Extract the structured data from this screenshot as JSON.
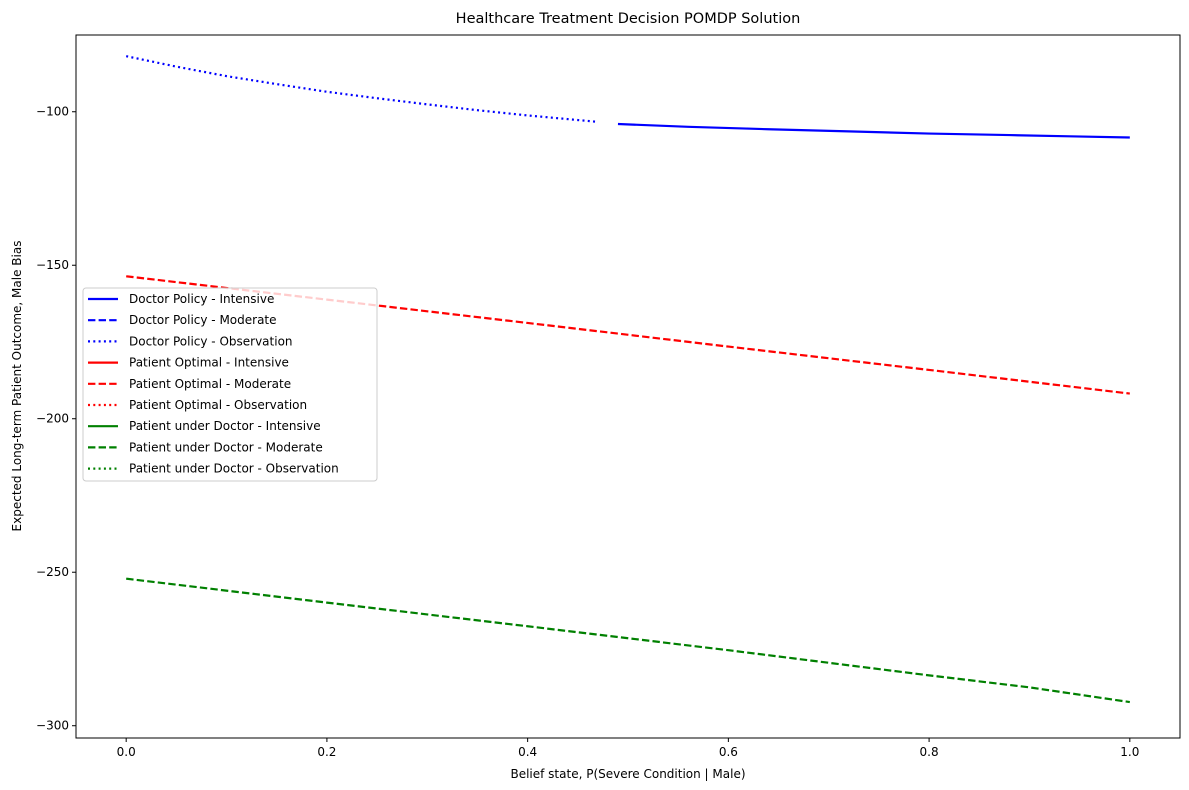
{
  "chart_data": {
    "type": "line",
    "title": "Healthcare Treatment Decision POMDP Solution",
    "xlabel": "Belief state, P(Severe Condition | Male)",
    "ylabel": "Expected Long-term Patient Outcome, Male Bias",
    "xlim": [
      -0.05,
      1.05
    ],
    "ylim": [
      -304,
      -75
    ],
    "xticks": [
      0.0,
      0.2,
      0.4,
      0.6,
      0.8,
      1.0
    ],
    "xtick_labels": [
      "0.0",
      "0.2",
      "0.4",
      "0.6",
      "0.8",
      "1.0"
    ],
    "yticks": [
      -300,
      -250,
      -200,
      -150,
      -100
    ],
    "ytick_labels": [
      "−300",
      "−250",
      "−200",
      "−150",
      "−100"
    ],
    "grid": false,
    "legend_position": "center-left",
    "series": [
      {
        "name": "Doctor Policy - Intensive",
        "color": "#0000ff",
        "style": "solid",
        "points": [
          [
            0.49,
            -104.0
          ],
          [
            0.56,
            -104.9
          ],
          [
            0.64,
            -105.7
          ],
          [
            0.72,
            -106.4
          ],
          [
            0.8,
            -107.1
          ],
          [
            0.88,
            -107.6
          ],
          [
            0.94,
            -108.0
          ],
          [
            1.0,
            -108.4
          ]
        ]
      },
      {
        "name": "Doctor Policy - Moderate",
        "color": "#0000ff",
        "style": "dashed",
        "points": []
      },
      {
        "name": "Doctor Policy - Observation",
        "color": "#0000ff",
        "style": "dotted",
        "points": [
          [
            0.0,
            -81.9
          ],
          [
            0.05,
            -85.3
          ],
          [
            0.1,
            -88.4
          ],
          [
            0.15,
            -91.0
          ],
          [
            0.2,
            -93.5
          ],
          [
            0.25,
            -95.6
          ],
          [
            0.3,
            -97.6
          ],
          [
            0.35,
            -99.5
          ],
          [
            0.4,
            -101.2
          ],
          [
            0.47,
            -103.3
          ]
        ]
      },
      {
        "name": "Patient Optimal - Intensive",
        "color": "#ff0000",
        "style": "solid",
        "points": []
      },
      {
        "name": "Patient Optimal - Moderate",
        "color": "#ff0000",
        "style": "dashed",
        "points": [
          [
            0.0,
            -153.6
          ],
          [
            0.2,
            -161.2
          ],
          [
            0.4,
            -168.8
          ],
          [
            0.6,
            -176.5
          ],
          [
            0.8,
            -184.1
          ],
          [
            1.0,
            -191.8
          ]
        ]
      },
      {
        "name": "Patient Optimal - Observation",
        "color": "#ff0000",
        "style": "dotted",
        "points": []
      },
      {
        "name": "Patient under Doctor - Intensive",
        "color": "#008000",
        "style": "solid",
        "points": []
      },
      {
        "name": "Patient under Doctor - Moderate",
        "color": "#008000",
        "style": "dashed",
        "points": [
          [
            0.0,
            -252.1
          ],
          [
            0.2,
            -259.9
          ],
          [
            0.4,
            -267.6
          ],
          [
            0.6,
            -275.4
          ],
          [
            0.8,
            -283.6
          ],
          [
            0.9,
            -287.5
          ],
          [
            1.0,
            -292.3
          ]
        ]
      },
      {
        "name": "Patient under Doctor - Observation",
        "color": "#008000",
        "style": "dotted",
        "points": []
      }
    ]
  }
}
